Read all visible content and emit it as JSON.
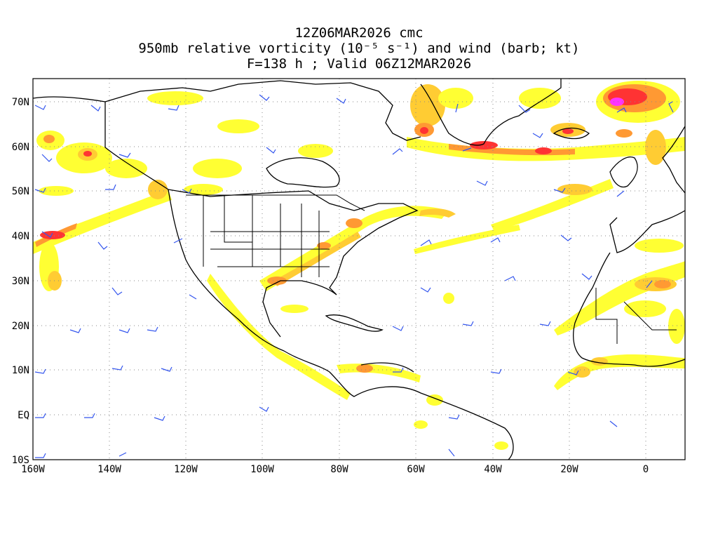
{
  "title": {
    "line1": "12Z06MAR2026 cmc",
    "line2": "950mb relative vorticity (10⁻⁵ s⁻¹) and wind (barb; kt)",
    "line3": "F=138 h ; Valid 06Z12MAR2026"
  },
  "map": {
    "projection": "lat-lon",
    "lon_range": [
      -160,
      10
    ],
    "lat_range": [
      -10,
      75
    ],
    "gridlines": "dotted",
    "lat_labels": [
      "70N",
      "60N",
      "50N",
      "40N",
      "30N",
      "20N",
      "10N",
      "EQ",
      "10S"
    ],
    "lon_labels": [
      "160W",
      "140W",
      "120W",
      "100W",
      "80W",
      "60W",
      "40W",
      "20W",
      "0"
    ],
    "colors": {
      "shade_light": "#ffff33",
      "shade_mid": "#ffcc33",
      "shade_orange": "#ff9933",
      "shade_red": "#ff3333",
      "shade_magenta": "#ff33ff",
      "barb_color": "#3355ee",
      "coast_color": "#000000"
    }
  }
}
